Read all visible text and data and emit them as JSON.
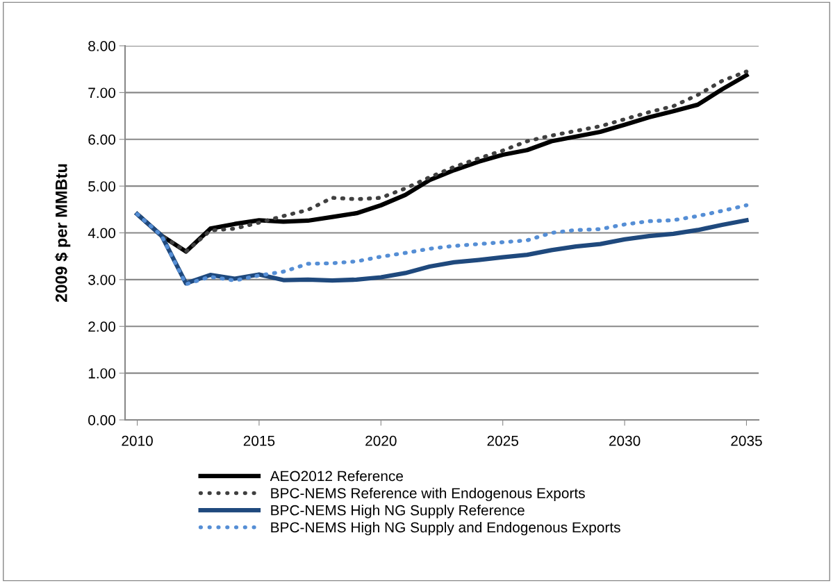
{
  "chart_data": {
    "type": "line",
    "ylabel": "2009 $ per MMBtu",
    "x": [
      2010,
      2011,
      2012,
      2013,
      2014,
      2015,
      2016,
      2017,
      2018,
      2019,
      2020,
      2021,
      2022,
      2023,
      2024,
      2025,
      2026,
      2027,
      2028,
      2029,
      2030,
      2031,
      2032,
      2033,
      2034,
      2035
    ],
    "series": [
      {
        "name": "AEO2012 Reference",
        "color": "#000000",
        "line_style": "solid",
        "values": [
          4.4,
          3.94,
          3.6,
          4.09,
          4.19,
          4.27,
          4.24,
          4.26,
          4.34,
          4.42,
          4.59,
          4.81,
          5.13,
          5.34,
          5.52,
          5.67,
          5.77,
          5.96,
          6.06,
          6.16,
          6.31,
          6.47,
          6.6,
          6.74,
          7.07,
          7.37
        ]
      },
      {
        "name": "BPC-NEMS Reference with Endogenous Exports",
        "color": "#404040",
        "line_style": "dotted",
        "values": [
          4.4,
          3.94,
          3.6,
          4.05,
          4.09,
          4.22,
          4.36,
          4.49,
          4.75,
          4.72,
          4.75,
          4.95,
          5.19,
          5.41,
          5.59,
          5.76,
          5.96,
          6.08,
          6.18,
          6.28,
          6.43,
          6.58,
          6.71,
          6.95,
          7.25,
          7.45
        ]
      },
      {
        "name": "BPC-NEMS High NG Supply Reference",
        "color": "#1f497d",
        "line_style": "solid",
        "values": [
          4.4,
          3.94,
          2.92,
          3.1,
          3.02,
          3.11,
          2.99,
          3.0,
          2.98,
          3.0,
          3.05,
          3.14,
          3.28,
          3.37,
          3.42,
          3.48,
          3.53,
          3.63,
          3.71,
          3.76,
          3.86,
          3.93,
          3.98,
          4.06,
          4.17,
          4.27
        ]
      },
      {
        "name": "BPC-NEMS High NG Supply and Endogenous Exports",
        "color": "#558ed5",
        "line_style": "dotted",
        "values": [
          4.4,
          3.94,
          2.9,
          3.06,
          2.98,
          3.09,
          3.17,
          3.34,
          3.35,
          3.39,
          3.49,
          3.57,
          3.66,
          3.72,
          3.76,
          3.8,
          3.84,
          4.0,
          4.06,
          4.08,
          4.18,
          4.25,
          4.27,
          4.36,
          4.47,
          4.59
        ]
      }
    ],
    "xlim": [
      2009.5,
      2035.5
    ],
    "xticks": [
      2010,
      2015,
      2020,
      2025,
      2030,
      2035
    ],
    "ylim": [
      0,
      8
    ],
    "yticks": [
      {
        "value": 0,
        "label": "0.00"
      },
      {
        "value": 1,
        "label": "1.00"
      },
      {
        "value": 2,
        "label": "2.00"
      },
      {
        "value": 3,
        "label": "3.00"
      },
      {
        "value": 4,
        "label": "4.00"
      },
      {
        "value": 5,
        "label": "5.00"
      },
      {
        "value": 6,
        "label": "6.00"
      },
      {
        "value": 7,
        "label": "7.00"
      },
      {
        "value": 8,
        "label": "8.00"
      }
    ],
    "grid": "y",
    "legend": "bottom",
    "marker": "none"
  }
}
